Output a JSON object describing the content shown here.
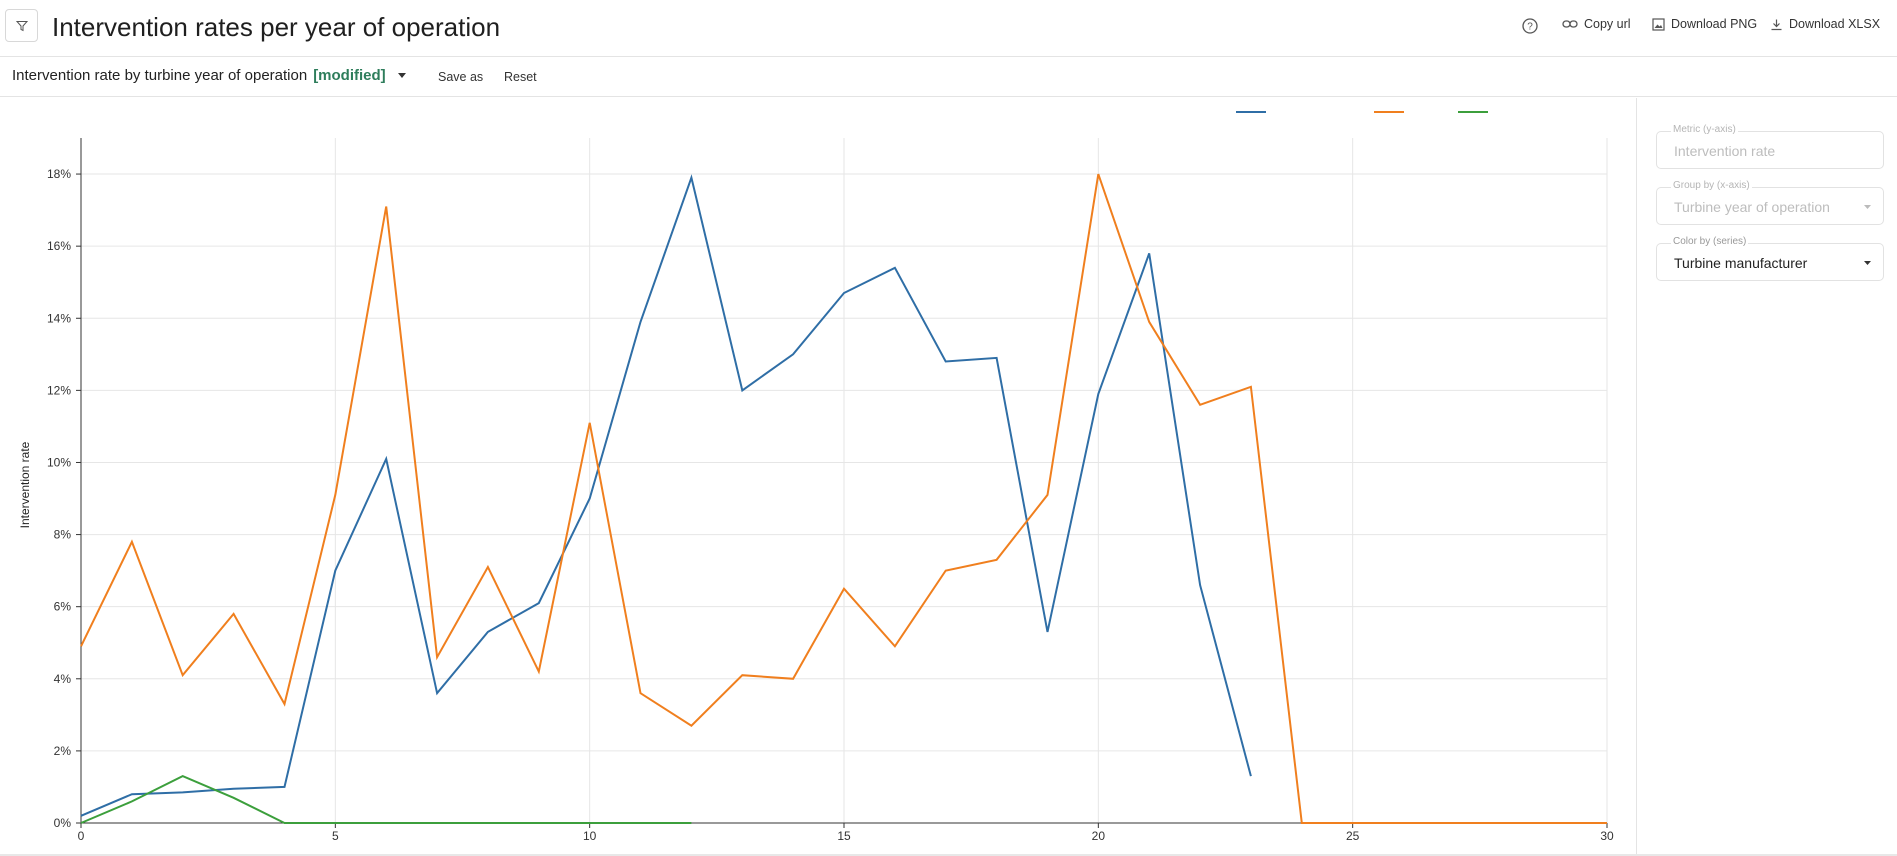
{
  "header": {
    "title": "Intervention rates per year of operation",
    "copy_url": "Copy url",
    "download_png": "Download PNG",
    "download_xlsx": "Download XLSX"
  },
  "subheader": {
    "view_name": "Intervention rate by turbine year of operation",
    "modified": "[modified]",
    "save_as": "Save as",
    "reset": "Reset"
  },
  "sidebar": {
    "metric": {
      "label": "Metric (y-axis)",
      "value": "Intervention rate"
    },
    "group_by": {
      "label": "Group by (x-axis)",
      "value": "Turbine year of operation"
    },
    "color_by": {
      "label": "Color by (series)",
      "value": "Turbine manufacturer"
    }
  },
  "chart_data": {
    "type": "line",
    "ylabel": "Intervention rate",
    "xlim": [
      0,
      30
    ],
    "ylim": [
      0,
      19
    ],
    "xticks": [
      0,
      5,
      10,
      15,
      20,
      25,
      30
    ],
    "yticks": [
      0,
      2,
      4,
      6,
      8,
      10,
      12,
      14,
      16,
      18
    ],
    "ytick_suffix": "%",
    "grid": true,
    "legend_position": "top-right",
    "series": [
      {
        "color": "#2f6ea6",
        "x": [
          0,
          1,
          2,
          3,
          4,
          5,
          6,
          7,
          8,
          9,
          10,
          11,
          12,
          13,
          14,
          15,
          16,
          17,
          18,
          19,
          20,
          21,
          22,
          23
        ],
        "y": [
          0.2,
          0.8,
          0.85,
          0.95,
          1.0,
          7.0,
          10.1,
          3.6,
          5.3,
          6.1,
          9.0,
          13.9,
          17.9,
          12.0,
          13.0,
          14.7,
          15.4,
          12.8,
          12.9,
          5.3,
          11.9,
          15.8,
          6.6,
          1.3
        ]
      },
      {
        "color": "#f07f1e",
        "x": [
          0,
          1,
          2,
          3,
          4,
          5,
          6,
          7,
          8,
          9,
          10,
          11,
          12,
          13,
          14,
          15,
          16,
          17,
          18,
          19,
          20,
          21,
          22,
          23,
          24,
          25,
          26,
          27,
          28,
          29,
          30
        ],
        "y": [
          4.9,
          7.8,
          4.1,
          5.8,
          3.3,
          9.1,
          17.1,
          4.6,
          7.1,
          4.2,
          11.1,
          3.6,
          2.7,
          4.1,
          4.0,
          6.5,
          4.9,
          7.0,
          7.3,
          9.1,
          18.0,
          13.9,
          11.6,
          12.1,
          0,
          0,
          0,
          0,
          0,
          0,
          0
        ]
      },
      {
        "color": "#3c9f3c",
        "x": [
          0,
          1,
          2,
          3,
          4,
          5,
          6,
          7,
          8,
          9,
          10,
          11,
          12
        ],
        "y": [
          0,
          0.6,
          1.3,
          0.7,
          0,
          0,
          0,
          0,
          0,
          0,
          0,
          0,
          0
        ]
      }
    ]
  }
}
